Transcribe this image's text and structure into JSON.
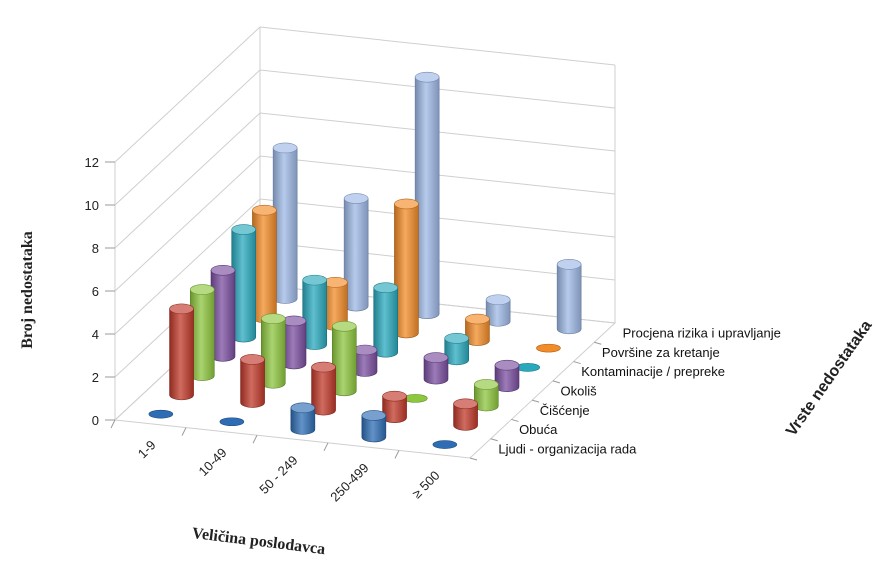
{
  "chart_data": {
    "type": "bar",
    "variant": "3d-cylinder",
    "title": "",
    "xlabel": "Veličina poslodavca",
    "ylabel": "Broj  nedostataka",
    "zlabel": "Vrste nedostataka",
    "ylim": [
      0,
      12
    ],
    "yticks": [
      0,
      2,
      4,
      6,
      8,
      10,
      12
    ],
    "grid": true,
    "legend": "none",
    "categories": [
      "1-9",
      "10-49",
      "50 - 249",
      "250-499",
      "≥ 500"
    ],
    "series": [
      {
        "name": "Ljudi - organizacija rada",
        "color": "#2e6db4",
        "values": [
          0,
          0,
          1,
          1,
          0
        ]
      },
      {
        "name": "Obuća",
        "color": "#c0392b",
        "values": [
          4,
          2,
          2,
          1,
          1
        ]
      },
      {
        "name": "Čišćenje",
        "color": "#8dc63f",
        "values": [
          4,
          3,
          3,
          0,
          1
        ]
      },
      {
        "name": "Okoliš",
        "color": "#7b4fa0",
        "values": [
          4,
          2,
          1,
          1,
          1
        ]
      },
      {
        "name": "Kontaminacije / prepreke",
        "color": "#2aa9bd",
        "values": [
          5,
          3,
          3,
          1,
          0
        ]
      },
      {
        "name": "Površine za kretanje",
        "color": "#f28c28",
        "values": [
          5,
          2,
          6,
          1,
          0
        ]
      },
      {
        "name": "Procjena rizika i upravljanje",
        "color": "#9db8e6",
        "values": [
          7,
          5,
          11,
          1,
          3
        ]
      }
    ]
  }
}
